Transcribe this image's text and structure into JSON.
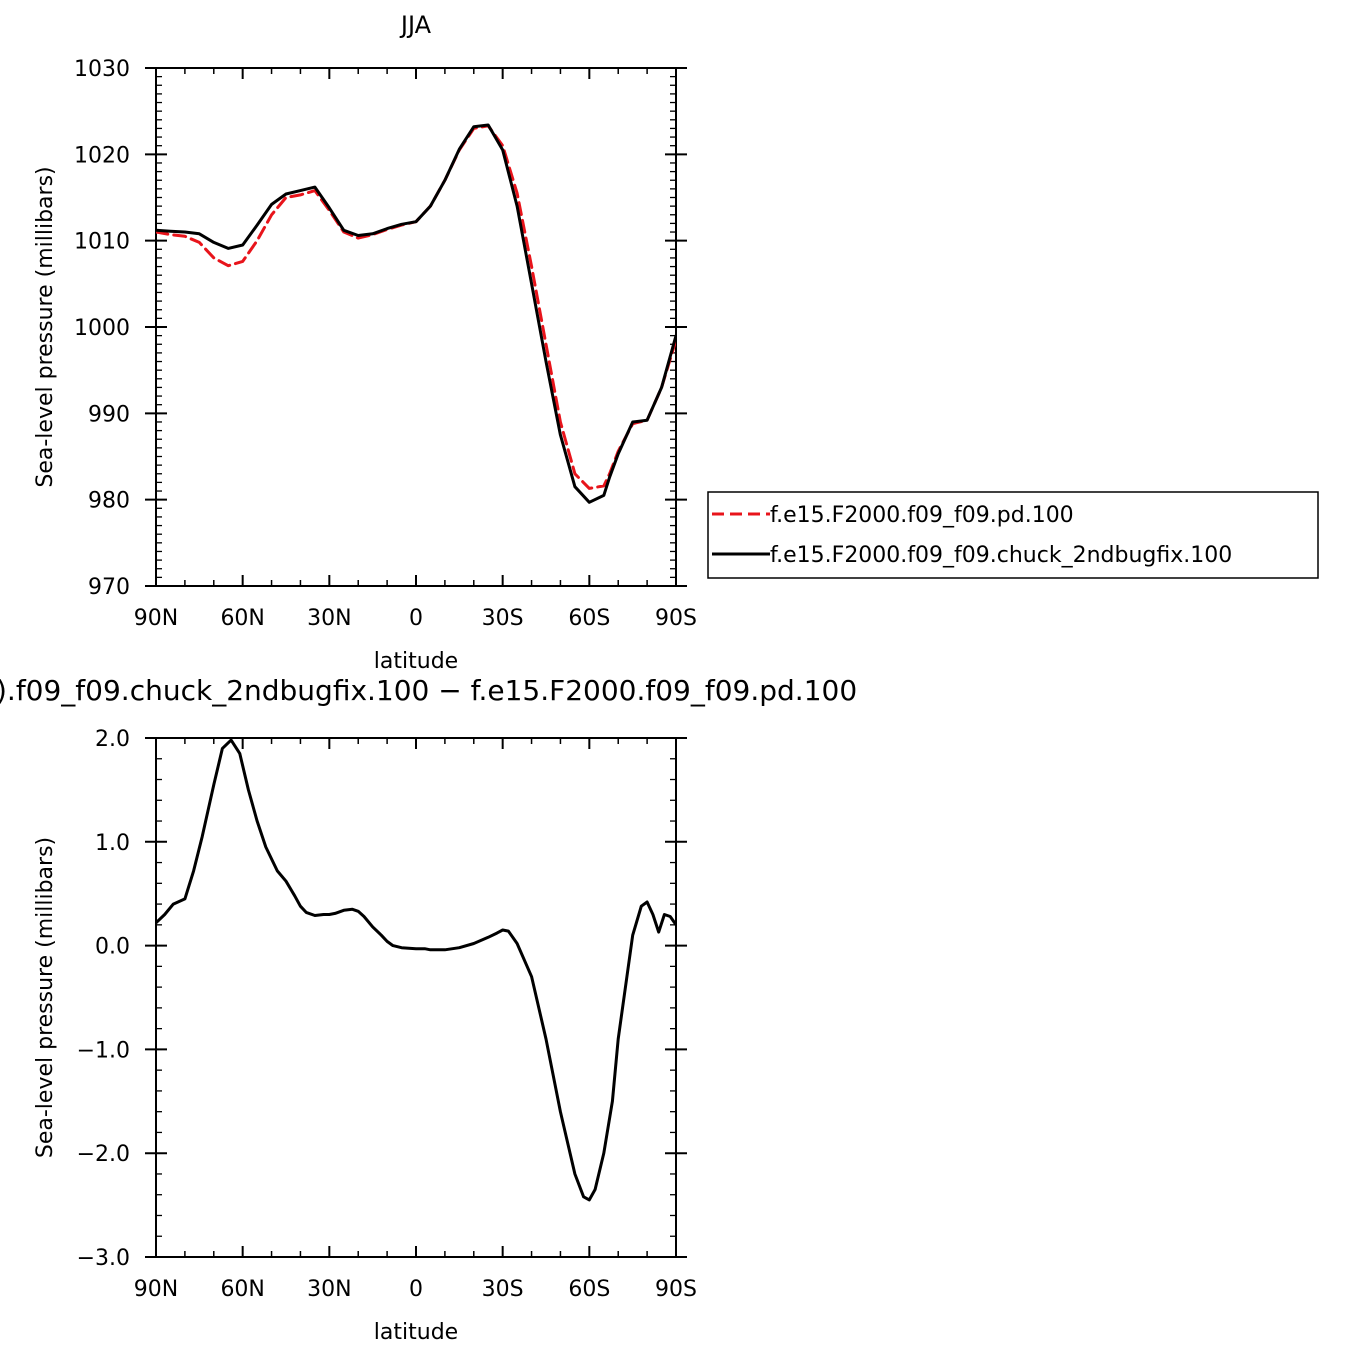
{
  "chart_data": [
    {
      "type": "line",
      "title": "JJA",
      "xlabel": "latitude",
      "ylabel": "Sea-level pressure (millibars)",
      "xlim": [
        90,
        -90
      ],
      "ylim": [
        970,
        1030
      ],
      "x_ticks": [
        90,
        60,
        30,
        0,
        -30,
        -60,
        -90
      ],
      "x_tick_labels": [
        "90N",
        "60N",
        "30N",
        "0",
        "30S",
        "60S",
        "90S"
      ],
      "y_ticks": [
        970,
        980,
        990,
        1000,
        1010,
        1020,
        1030
      ],
      "y_tick_labels": [
        "970",
        "980",
        "990",
        "1000",
        "1010",
        "1020",
        "1030"
      ],
      "legend": {
        "placement": "right",
        "entries": [
          "f.e15.F2000.f09_f09.pd.100",
          "f.e15.F2000.f09_f09.chuck_2ndbugfix.100"
        ]
      },
      "series": [
        {
          "name": "f.e15.F2000.f09_f09.pd.100",
          "color": "#e8141b",
          "dash": "dashed",
          "x": [
            90,
            85,
            80,
            75,
            70,
            65,
            60,
            55,
            50,
            45,
            40,
            35,
            30,
            25,
            20,
            15,
            10,
            5,
            0,
            -5,
            -10,
            -15,
            -20,
            -25,
            -30,
            -35,
            -40,
            -45,
            -50,
            -55,
            -60,
            -65,
            -67,
            -70,
            -75,
            -80,
            -85,
            -90
          ],
          "y": [
            1011,
            1010.7,
            1010.5,
            1009.8,
            1008,
            1007.1,
            1007.6,
            1010,
            1013,
            1015,
            1015.3,
            1015.8,
            1013.5,
            1011,
            1010.3,
            1010.7,
            1011.3,
            1011.8,
            1012.2,
            1014,
            1017,
            1020.5,
            1023,
            1023.3,
            1021,
            1015.5,
            1007,
            998,
            989,
            983,
            981.3,
            981.6,
            983,
            985.6,
            988.8,
            989.2,
            993,
            998.5
          ]
        },
        {
          "name": "f.e15.F2000.f09_f09.chuck_2ndbugfix.100",
          "color": "#000000",
          "dash": "solid",
          "x": [
            90,
            85,
            80,
            75,
            70,
            65,
            60,
            55,
            50,
            45,
            40,
            35,
            30,
            25,
            20,
            15,
            10,
            5,
            0,
            -5,
            -10,
            -15,
            -20,
            -25,
            -30,
            -35,
            -40,
            -45,
            -50,
            -55,
            -60,
            -65,
            -67,
            -70,
            -75,
            -80,
            -85,
            -90
          ],
          "y": [
            1011.2,
            1011.1,
            1011,
            1010.8,
            1009.8,
            1009.1,
            1009.5,
            1011.8,
            1014.2,
            1015.4,
            1015.8,
            1016.2,
            1013.8,
            1011.2,
            1010.6,
            1010.8,
            1011.4,
            1011.9,
            1012.2,
            1014,
            1017,
            1020.6,
            1023.2,
            1023.4,
            1020.5,
            1014,
            1005,
            996,
            987.5,
            981.5,
            979.7,
            980.5,
            982.6,
            985.3,
            989,
            989.2,
            993,
            999
          ]
        }
      ]
    },
    {
      "type": "line",
      "title": ").f09_f09.chuck_2ndbugfix.100 − f.e15.F2000.f09_f09.pd.100",
      "xlabel": "latitude",
      "ylabel": "Sea-level pressure (millibars)",
      "xlim": [
        90,
        -90
      ],
      "ylim": [
        -3.0,
        2.0
      ],
      "x_ticks": [
        90,
        60,
        30,
        0,
        -30,
        -60,
        -90
      ],
      "x_tick_labels": [
        "90N",
        "60N",
        "30N",
        "0",
        "30S",
        "60S",
        "90S"
      ],
      "y_ticks": [
        -3.0,
        -2.0,
        -1.0,
        0.0,
        1.0,
        2.0
      ],
      "y_tick_labels": [
        "−3.0",
        "−2.0",
        "−1.0",
        "0.0",
        "1.0",
        "2.0"
      ],
      "series": [
        {
          "color": "#000000",
          "dash": "solid",
          "x": [
            90,
            87,
            84,
            80,
            77,
            74,
            70,
            67,
            64,
            61,
            58,
            55,
            52,
            48,
            45,
            42,
            40,
            38,
            35,
            32,
            30,
            28,
            25,
            22,
            20,
            18,
            15,
            12,
            10,
            8,
            5,
            0,
            -3,
            -5,
            -10,
            -15,
            -20,
            -25,
            -28,
            -30,
            -32,
            -35,
            -40,
            -45,
            -50,
            -55,
            -58,
            -60,
            -62,
            -65,
            -68,
            -70,
            -73,
            -75,
            -78,
            -80,
            -82,
            -84,
            -86,
            -88,
            -90
          ],
          "y": [
            0.22,
            0.3,
            0.4,
            0.45,
            0.72,
            1.05,
            1.55,
            1.9,
            1.98,
            1.85,
            1.5,
            1.2,
            0.95,
            0.72,
            0.62,
            0.48,
            0.38,
            0.32,
            0.29,
            0.3,
            0.3,
            0.31,
            0.34,
            0.35,
            0.33,
            0.28,
            0.18,
            0.1,
            0.04,
            0.0,
            -0.02,
            -0.03,
            -0.03,
            -0.04,
            -0.04,
            -0.02,
            0.02,
            0.08,
            0.12,
            0.15,
            0.14,
            0.02,
            -0.3,
            -0.9,
            -1.6,
            -2.2,
            -2.42,
            -2.45,
            -2.35,
            -2.0,
            -1.5,
            -0.9,
            -0.3,
            0.1,
            0.38,
            0.42,
            0.3,
            0.13,
            0.3,
            0.28,
            0.2
          ]
        }
      ]
    }
  ]
}
